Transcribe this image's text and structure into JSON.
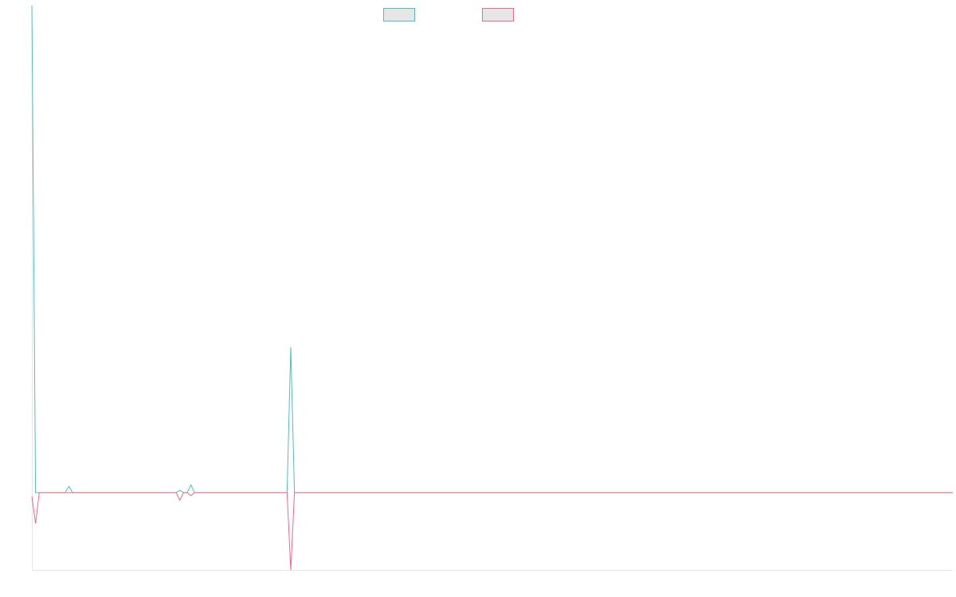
{
  "chart_data": {
    "type": "line",
    "title": "",
    "xlabel": "",
    "ylabel": "",
    "x_count": 250,
    "ylim": [
      -100,
      600
    ],
    "grid": false,
    "legend_position": "top-center",
    "series": [
      {
        "color": "#4bc0c0",
        "points": [
          [
            0,
            630
          ],
          [
            1,
            0
          ],
          [
            10,
            8
          ],
          [
            40,
            3
          ],
          [
            43,
            10
          ],
          [
            70,
            188
          ]
        ]
      },
      {
        "color": "#ff6384",
        "points": [
          [
            0,
            -5
          ],
          [
            1,
            -40
          ],
          [
            40,
            -10
          ],
          [
            43,
            -4
          ],
          [
            70,
            -100
          ]
        ]
      }
    ]
  }
}
